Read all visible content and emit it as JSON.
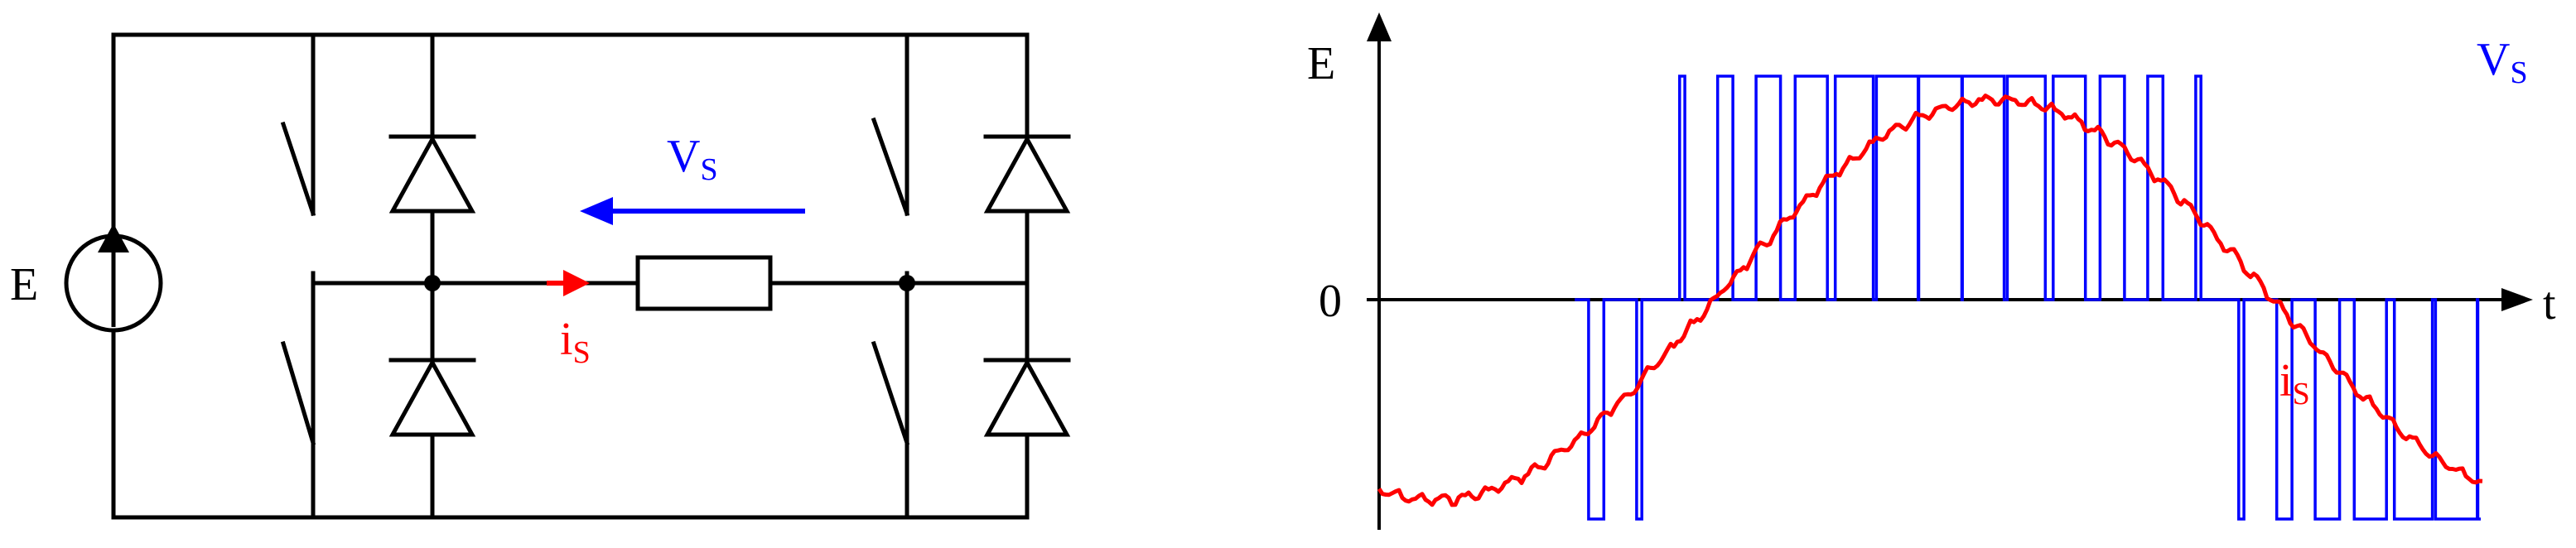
{
  "circuit": {
    "source_label": "E",
    "voltage_label": {
      "main": "V",
      "sub": "S"
    },
    "current_label": {
      "main": "i",
      "sub": "S"
    },
    "colors": {
      "wire": "#000000",
      "voltage": "#0000ff",
      "current": "#ff0000"
    }
  },
  "waveform": {
    "y_top_label": "E",
    "y_zero_label": "0",
    "x_axis_label": "t",
    "voltage_label": {
      "main": "V",
      "sub": "S"
    },
    "current_label": {
      "main": "i",
      "sub": "S"
    },
    "colors": {
      "voltage": "#0000ff",
      "current": "#ff0000",
      "axis": "#000000"
    }
  }
}
